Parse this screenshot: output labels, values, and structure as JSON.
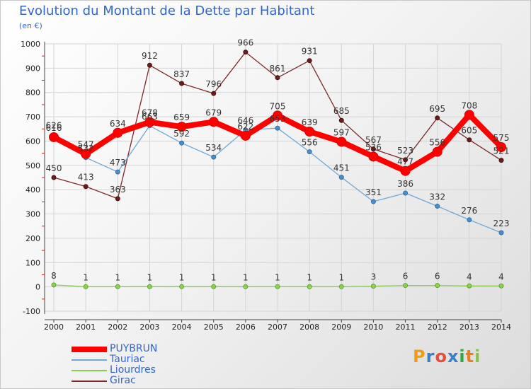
{
  "title": "Evolution du Montant de la Dette par Habitant",
  "subtitle": "(en €)",
  "logo": {
    "text": "Proxiti"
  },
  "chart_data": {
    "type": "line",
    "title": "Evolution du Montant de la Dette par Habitant",
    "subtitle": "(en €)",
    "xlabel": "",
    "ylabel": "",
    "ylim": [
      -100,
      1000
    ],
    "yticks": [
      -100,
      0,
      100,
      200,
      300,
      400,
      500,
      600,
      700,
      800,
      900,
      1000
    ],
    "categories": [
      "2000",
      "2001",
      "2002",
      "2003",
      "2004",
      "2005",
      "2006",
      "2007",
      "2008",
      "2009",
      "2010",
      "2011",
      "2012",
      "2013",
      "2014"
    ],
    "grid": true,
    "legend_position": "bottom-left",
    "series": [
      {
        "name": "PUYBRUN",
        "color": "#ff0000",
        "values": [
          616,
          547,
          634,
          678,
          659,
          679,
          622,
          705,
          639,
          597,
          536,
          477,
          556,
          708,
          575
        ]
      },
      {
        "name": "Tauriac",
        "color": "#6fa8d8",
        "values": [
          626,
          532,
          473,
          663,
          592,
          534,
          646,
          653,
          556,
          451,
          351,
          386,
          332,
          276,
          223
        ]
      },
      {
        "name": "Liourdres",
        "color": "#88cc55",
        "values": [
          8,
          1,
          1,
          1,
          1,
          1,
          1,
          1,
          1,
          1,
          3,
          6,
          6,
          4,
          4
        ]
      },
      {
        "name": "Girac",
        "color": "#7b2a2a",
        "values": [
          450,
          413,
          363,
          912,
          837,
          796,
          966,
          861,
          931,
          685,
          567,
          523,
          695,
          605,
          521
        ]
      }
    ]
  }
}
